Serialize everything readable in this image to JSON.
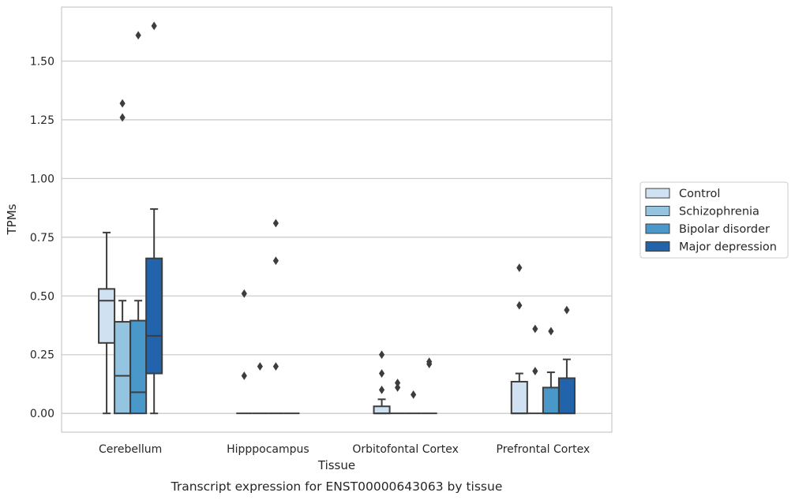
{
  "caption": "Transcript expression for ENST00000643063 by tissue",
  "chart_data": {
    "type": "box",
    "xlabel": "Tissue",
    "ylabel": "TPMs",
    "ylim": [
      -0.08,
      1.73
    ],
    "yticks": [
      "0.00",
      "0.25",
      "0.50",
      "0.75",
      "1.00",
      "1.25",
      "1.50"
    ],
    "grid": "horizontal",
    "legend_position": "right",
    "categories": [
      "Cerebellum",
      "Hipppocampus",
      "Orbitofontal Cortex",
      "Prefrontal Cortex"
    ],
    "series": [
      {
        "name": "Control",
        "color": "#d0e1f2",
        "boxes": [
          {
            "whislo": 0.0,
            "q1": 0.3,
            "med": 0.48,
            "q3": 0.53,
            "whishi": 0.77,
            "fliers": []
          },
          {
            "whislo": 0.0,
            "q1": 0.0,
            "med": 0.0,
            "q3": 0.0,
            "whishi": 0.0,
            "fliers": [
              0.16,
              0.51
            ]
          },
          {
            "whislo": 0.0,
            "q1": 0.0,
            "med": 0.0,
            "q3": 0.03,
            "whishi": 0.06,
            "fliers": [
              0.1,
              0.17,
              0.25
            ]
          },
          {
            "whislo": 0.0,
            "q1": 0.0,
            "med": 0.0,
            "q3": 0.135,
            "whishi": 0.17,
            "fliers": [
              0.46,
              0.62
            ]
          }
        ]
      },
      {
        "name": "Schizophrenia",
        "color": "#94c4df",
        "boxes": [
          {
            "whislo": 0.0,
            "q1": 0.0,
            "med": 0.16,
            "q3": 0.39,
            "whishi": 0.48,
            "fliers": [
              1.26,
              1.32
            ]
          },
          {
            "whislo": 0.0,
            "q1": 0.0,
            "med": 0.0,
            "q3": 0.0,
            "whishi": 0.0,
            "fliers": [
              0.2
            ]
          },
          {
            "whislo": 0.0,
            "q1": 0.0,
            "med": 0.0,
            "q3": 0.0,
            "whishi": 0.0,
            "fliers": [
              0.11,
              0.13
            ]
          },
          {
            "whislo": 0.0,
            "q1": 0.0,
            "med": 0.0,
            "q3": 0.0,
            "whishi": 0.0,
            "fliers": [
              0.18,
              0.36
            ]
          }
        ]
      },
      {
        "name": "Bipolar disorder",
        "color": "#4a98c9",
        "boxes": [
          {
            "whislo": 0.0,
            "q1": 0.0,
            "med": 0.09,
            "q3": 0.395,
            "whishi": 0.48,
            "fliers": [
              1.61
            ]
          },
          {
            "whislo": 0.0,
            "q1": 0.0,
            "med": 0.0,
            "q3": 0.0,
            "whishi": 0.0,
            "fliers": [
              0.2,
              0.65,
              0.81
            ]
          },
          {
            "whislo": 0.0,
            "q1": 0.0,
            "med": 0.0,
            "q3": 0.0,
            "whishi": 0.0,
            "fliers": [
              0.08
            ]
          },
          {
            "whislo": 0.0,
            "q1": 0.0,
            "med": 0.0,
            "q3": 0.11,
            "whishi": 0.175,
            "fliers": [
              0.35
            ]
          }
        ]
      },
      {
        "name": "Major depression",
        "color": "#2164ab",
        "boxes": [
          {
            "whislo": 0.0,
            "q1": 0.17,
            "med": 0.33,
            "q3": 0.66,
            "whishi": 0.87,
            "fliers": [
              1.65
            ]
          },
          {
            "whislo": 0.0,
            "q1": 0.0,
            "med": 0.0,
            "q3": 0.0,
            "whishi": 0.0,
            "fliers": []
          },
          {
            "whislo": 0.0,
            "q1": 0.0,
            "med": 0.0,
            "q3": 0.0,
            "whishi": 0.0,
            "fliers": [
              0.21,
              0.22
            ]
          },
          {
            "whislo": 0.0,
            "q1": 0.0,
            "med": 0.0,
            "q3": 0.15,
            "whishi": 0.23,
            "fliers": [
              0.44
            ]
          }
        ]
      }
    ]
  }
}
